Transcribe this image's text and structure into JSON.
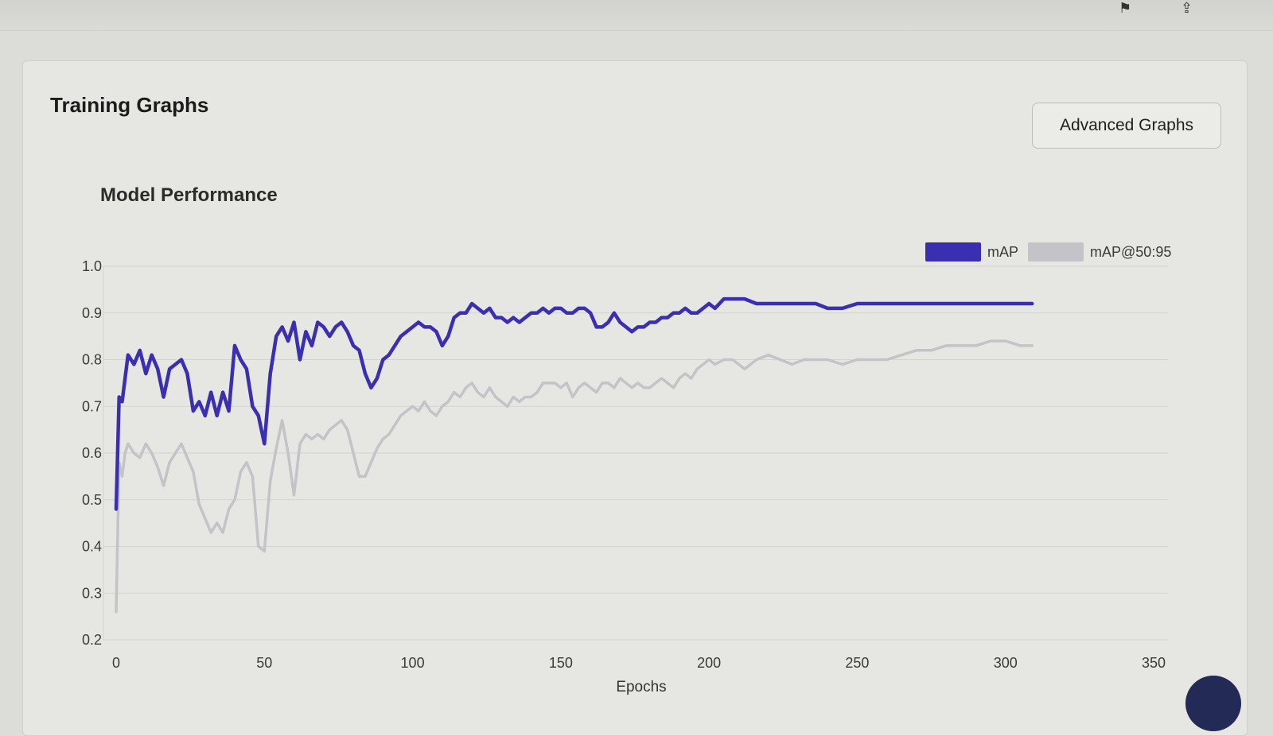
{
  "page": {
    "title": "Training Graphs",
    "advanced_button": "Advanced Graphs"
  },
  "colors": {
    "map": "#3a2fb0",
    "map5095": "#c4c4c8",
    "grid": "#d3d3d0"
  },
  "chart_data": {
    "type": "line",
    "title": "Model Performance",
    "xlabel": "Epochs",
    "ylabel": "",
    "xlim": [
      0,
      350
    ],
    "ylim": [
      0.2,
      1.0
    ],
    "x_ticks": [
      0,
      50,
      100,
      150,
      200,
      250,
      300,
      350
    ],
    "y_ticks": [
      0.2,
      0.3,
      0.4,
      0.5,
      0.6,
      0.7,
      0.8,
      0.9,
      1.0
    ],
    "grid": true,
    "legend_position": "top-right",
    "series": [
      {
        "name": "mAP",
        "x": [
          0,
          1,
          2,
          3,
          4,
          6,
          8,
          10,
          12,
          14,
          16,
          18,
          20,
          22,
          24,
          26,
          28,
          30,
          32,
          34,
          36,
          38,
          40,
          42,
          44,
          46,
          48,
          50,
          52,
          54,
          56,
          58,
          60,
          62,
          64,
          66,
          68,
          70,
          72,
          74,
          76,
          78,
          80,
          82,
          84,
          86,
          88,
          90,
          92,
          94,
          96,
          98,
          100,
          102,
          104,
          106,
          108,
          110,
          112,
          114,
          116,
          118,
          120,
          122,
          124,
          126,
          128,
          130,
          132,
          134,
          136,
          138,
          140,
          142,
          144,
          146,
          148,
          150,
          152,
          154,
          156,
          158,
          160,
          162,
          164,
          166,
          168,
          170,
          172,
          174,
          176,
          178,
          180,
          182,
          184,
          186,
          188,
          190,
          192,
          194,
          196,
          198,
          200,
          202,
          205,
          208,
          212,
          216,
          220,
          224,
          228,
          232,
          236,
          240,
          245,
          250,
          255,
          260,
          265,
          270,
          275,
          280,
          285,
          290,
          295,
          300,
          305,
          309
        ],
        "values": [
          0.48,
          0.72,
          0.71,
          0.76,
          0.81,
          0.79,
          0.82,
          0.77,
          0.81,
          0.78,
          0.72,
          0.78,
          0.79,
          0.8,
          0.77,
          0.69,
          0.71,
          0.68,
          0.73,
          0.68,
          0.73,
          0.69,
          0.83,
          0.8,
          0.78,
          0.7,
          0.68,
          0.62,
          0.77,
          0.85,
          0.87,
          0.84,
          0.88,
          0.8,
          0.86,
          0.83,
          0.88,
          0.87,
          0.85,
          0.87,
          0.88,
          0.86,
          0.83,
          0.82,
          0.77,
          0.74,
          0.76,
          0.8,
          0.81,
          0.83,
          0.85,
          0.86,
          0.87,
          0.88,
          0.87,
          0.87,
          0.86,
          0.83,
          0.85,
          0.89,
          0.9,
          0.9,
          0.92,
          0.91,
          0.9,
          0.91,
          0.89,
          0.89,
          0.88,
          0.89,
          0.88,
          0.89,
          0.9,
          0.9,
          0.91,
          0.9,
          0.91,
          0.91,
          0.9,
          0.9,
          0.91,
          0.91,
          0.9,
          0.87,
          0.87,
          0.88,
          0.9,
          0.88,
          0.87,
          0.86,
          0.87,
          0.87,
          0.88,
          0.88,
          0.89,
          0.89,
          0.9,
          0.9,
          0.91,
          0.9,
          0.9,
          0.91,
          0.92,
          0.91,
          0.93,
          0.93,
          0.93,
          0.92,
          0.92,
          0.92,
          0.92,
          0.92,
          0.92,
          0.91,
          0.91,
          0.92,
          0.92,
          0.92,
          0.92,
          0.92,
          0.92,
          0.92,
          0.92,
          0.92,
          0.92,
          0.92,
          0.92,
          0.92
        ]
      },
      {
        "name": "mAP@50:95",
        "x": [
          0,
          1,
          2,
          3,
          4,
          6,
          8,
          10,
          12,
          14,
          16,
          18,
          20,
          22,
          24,
          26,
          28,
          30,
          32,
          34,
          36,
          38,
          40,
          42,
          44,
          46,
          48,
          50,
          52,
          54,
          56,
          58,
          60,
          62,
          64,
          66,
          68,
          70,
          72,
          74,
          76,
          78,
          80,
          82,
          84,
          86,
          88,
          90,
          92,
          94,
          96,
          98,
          100,
          102,
          104,
          106,
          108,
          110,
          112,
          114,
          116,
          118,
          120,
          122,
          124,
          126,
          128,
          130,
          132,
          134,
          136,
          138,
          140,
          142,
          144,
          146,
          148,
          150,
          152,
          154,
          156,
          158,
          160,
          162,
          164,
          166,
          168,
          170,
          172,
          174,
          176,
          178,
          180,
          182,
          184,
          186,
          188,
          190,
          192,
          194,
          196,
          198,
          200,
          202,
          205,
          208,
          212,
          216,
          220,
          224,
          228,
          232,
          236,
          240,
          245,
          250,
          255,
          260,
          265,
          270,
          275,
          280,
          285,
          290,
          295,
          300,
          305,
          309
        ],
        "values": [
          0.26,
          0.58,
          0.55,
          0.6,
          0.62,
          0.6,
          0.59,
          0.62,
          0.6,
          0.57,
          0.53,
          0.58,
          0.6,
          0.62,
          0.59,
          0.56,
          0.49,
          0.46,
          0.43,
          0.45,
          0.43,
          0.48,
          0.5,
          0.56,
          0.58,
          0.55,
          0.4,
          0.39,
          0.54,
          0.61,
          0.67,
          0.6,
          0.51,
          0.62,
          0.64,
          0.63,
          0.64,
          0.63,
          0.65,
          0.66,
          0.67,
          0.65,
          0.6,
          0.55,
          0.55,
          0.58,
          0.61,
          0.63,
          0.64,
          0.66,
          0.68,
          0.69,
          0.7,
          0.69,
          0.71,
          0.69,
          0.68,
          0.7,
          0.71,
          0.73,
          0.72,
          0.74,
          0.75,
          0.73,
          0.72,
          0.74,
          0.72,
          0.71,
          0.7,
          0.72,
          0.71,
          0.72,
          0.72,
          0.73,
          0.75,
          0.75,
          0.75,
          0.74,
          0.75,
          0.72,
          0.74,
          0.75,
          0.74,
          0.73,
          0.75,
          0.75,
          0.74,
          0.76,
          0.75,
          0.74,
          0.75,
          0.74,
          0.74,
          0.75,
          0.76,
          0.75,
          0.74,
          0.76,
          0.77,
          0.76,
          0.78,
          0.79,
          0.8,
          0.79,
          0.8,
          0.8,
          0.78,
          0.8,
          0.81,
          0.8,
          0.79,
          0.8,
          0.8,
          0.8,
          0.79,
          0.8,
          0.8,
          0.8,
          0.81,
          0.82,
          0.82,
          0.83,
          0.83,
          0.83,
          0.84,
          0.84,
          0.83,
          0.83
        ]
      }
    ]
  }
}
